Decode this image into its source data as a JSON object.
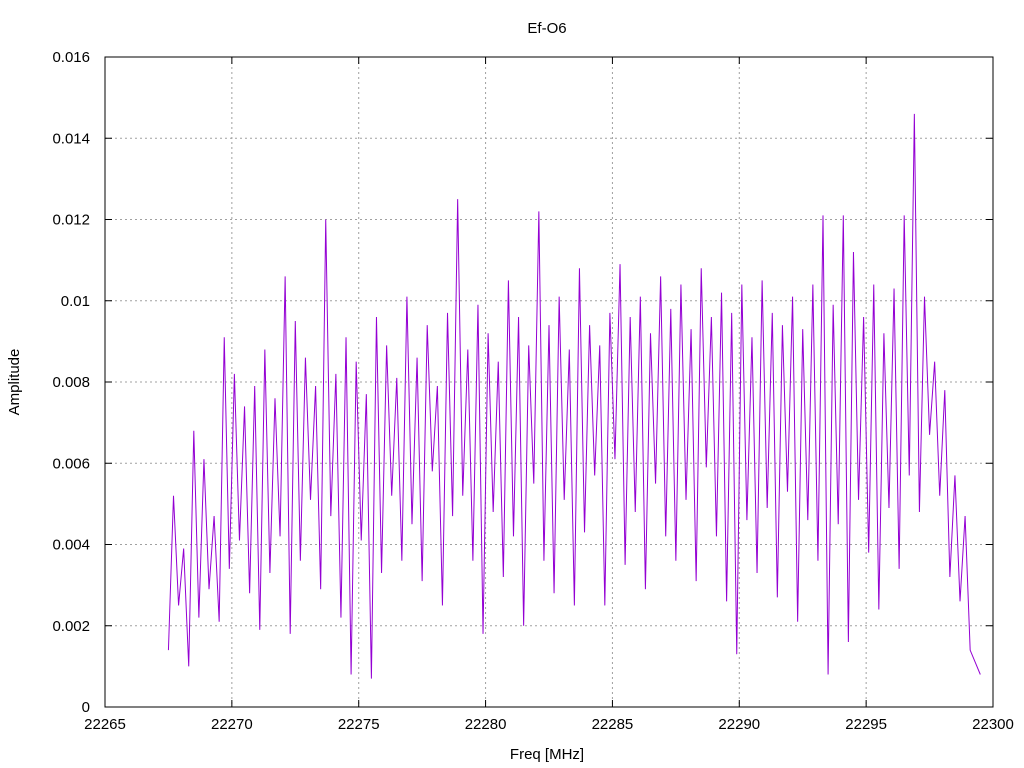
{
  "chart_data": {
    "type": "line",
    "title": "Ef-O6",
    "xlabel": "Freq [MHz]",
    "ylabel": "Amplitude",
    "xlim": [
      22265,
      22300
    ],
    "ylim": [
      0,
      0.016
    ],
    "grid": true,
    "x_ticks": [
      22265,
      22270,
      22275,
      22280,
      22285,
      22290,
      22295,
      22300
    ],
    "x_tick_labels": [
      "22265",
      "22270",
      "22275",
      "22280",
      "22285",
      "22290",
      "22295",
      "22300"
    ],
    "y_ticks": [
      0,
      0.002,
      0.004,
      0.006,
      0.008,
      0.01,
      0.012,
      0.014,
      0.016
    ],
    "y_tick_labels": [
      "0",
      "0.002",
      "0.004",
      "0.006",
      "0.008",
      "0.01",
      "0.012",
      "0.014",
      "0.016"
    ],
    "series_color": "#9400d3",
    "series": [
      {
        "name": "",
        "x": [
          22267.5,
          22267.7,
          22267.9,
          22268.1,
          22268.3,
          22268.5,
          22268.7,
          22268.9,
          22269.1,
          22269.3,
          22269.5,
          22269.7,
          22269.9,
          22270.1,
          22270.3,
          22270.5,
          22270.7,
          22270.9,
          22271.1,
          22271.3,
          22271.5,
          22271.7,
          22271.9,
          22272.1,
          22272.3,
          22272.5,
          22272.7,
          22272.9,
          22273.1,
          22273.3,
          22273.5,
          22273.7,
          22273.9,
          22274.1,
          22274.3,
          22274.5,
          22274.7,
          22274.9,
          22275.1,
          22275.3,
          22275.5,
          22275.7,
          22275.9,
          22276.1,
          22276.3,
          22276.5,
          22276.7,
          22276.9,
          22277.1,
          22277.3,
          22277.5,
          22277.7,
          22277.9,
          22278.1,
          22278.3,
          22278.5,
          22278.7,
          22278.9,
          22279.1,
          22279.3,
          22279.5,
          22279.7,
          22279.9,
          22280.1,
          22280.3,
          22280.5,
          22280.7,
          22280.9,
          22281.1,
          22281.3,
          22281.5,
          22281.7,
          22281.9,
          22282.1,
          22282.3,
          22282.5,
          22282.7,
          22282.9,
          22283.1,
          22283.3,
          22283.5,
          22283.7,
          22283.9,
          22284.1,
          22284.3,
          22284.5,
          22284.7,
          22284.9,
          22285.1,
          22285.3,
          22285.5,
          22285.7,
          22285.9,
          22286.1,
          22286.3,
          22286.5,
          22286.7,
          22286.9,
          22287.1,
          22287.3,
          22287.5,
          22287.7,
          22287.9,
          22288.1,
          22288.3,
          22288.5,
          22288.7,
          22288.9,
          22289.1,
          22289.3,
          22289.5,
          22289.7,
          22289.9,
          22290.1,
          22290.3,
          22290.5,
          22290.7,
          22290.9,
          22291.1,
          22291.3,
          22291.5,
          22291.7,
          22291.9,
          22292.1,
          22292.3,
          22292.5,
          22292.7,
          22292.9,
          22293.1,
          22293.3,
          22293.5,
          22293.7,
          22293.9,
          22294.1,
          22294.3,
          22294.5,
          22294.7,
          22294.9,
          22295.1,
          22295.3,
          22295.5,
          22295.7,
          22295.9,
          22296.1,
          22296.3,
          22296.5,
          22296.7,
          22296.9,
          22297.1,
          22297.3,
          22297.5,
          22297.7,
          22297.9,
          22298.1,
          22298.3,
          22298.5,
          22298.7,
          22298.9,
          22299.1,
          22299.3,
          22299.5
        ],
        "y": [
          0.0014,
          0.0052,
          0.0025,
          0.0039,
          0.001,
          0.0068,
          0.0022,
          0.0061,
          0.0029,
          0.0047,
          0.0021,
          0.0091,
          0.0034,
          0.0082,
          0.0041,
          0.0074,
          0.0028,
          0.0079,
          0.0019,
          0.0088,
          0.0033,
          0.0076,
          0.0042,
          0.0106,
          0.0018,
          0.0095,
          0.0036,
          0.0086,
          0.0051,
          0.0079,
          0.0029,
          0.012,
          0.0047,
          0.0082,
          0.0022,
          0.0091,
          0.0008,
          0.0085,
          0.0041,
          0.0077,
          0.0007,
          0.0096,
          0.0033,
          0.0089,
          0.0052,
          0.0081,
          0.0036,
          0.0101,
          0.0045,
          0.0086,
          0.0031,
          0.0094,
          0.0058,
          0.0079,
          0.0025,
          0.0097,
          0.0047,
          0.0125,
          0.0052,
          0.0088,
          0.0036,
          0.0099,
          0.0018,
          0.0092,
          0.0048,
          0.0085,
          0.0032,
          0.0105,
          0.0042,
          0.0096,
          0.002,
          0.0089,
          0.0055,
          0.0122,
          0.0036,
          0.0094,
          0.0028,
          0.0101,
          0.0051,
          0.0088,
          0.0025,
          0.0108,
          0.0043,
          0.0094,
          0.0057,
          0.0089,
          0.0025,
          0.0097,
          0.0061,
          0.0109,
          0.0035,
          0.0096,
          0.0048,
          0.0101,
          0.0029,
          0.0092,
          0.0055,
          0.0106,
          0.0042,
          0.0098,
          0.0036,
          0.0104,
          0.0051,
          0.0093,
          0.0031,
          0.0108,
          0.0059,
          0.0096,
          0.0042,
          0.0102,
          0.0026,
          0.0097,
          0.0013,
          0.0104,
          0.0046,
          0.0091,
          0.0033,
          0.0105,
          0.0049,
          0.0097,
          0.0027,
          0.0094,
          0.0053,
          0.0101,
          0.0021,
          0.0093,
          0.0046,
          0.0104,
          0.0036,
          0.0121,
          0.0008,
          0.0099,
          0.0045,
          0.0121,
          0.0016,
          0.0112,
          0.0051,
          0.0096,
          0.0038,
          0.0104,
          0.0024,
          0.0092,
          0.0049,
          0.0103,
          0.0034,
          0.0121,
          0.0057,
          0.0146,
          0.0048,
          0.0101,
          0.0067,
          0.0085,
          0.0052,
          0.0078,
          0.0032,
          0.0057,
          0.0026,
          0.0047,
          0.0014,
          0.0011,
          0.0008
        ]
      }
    ]
  }
}
